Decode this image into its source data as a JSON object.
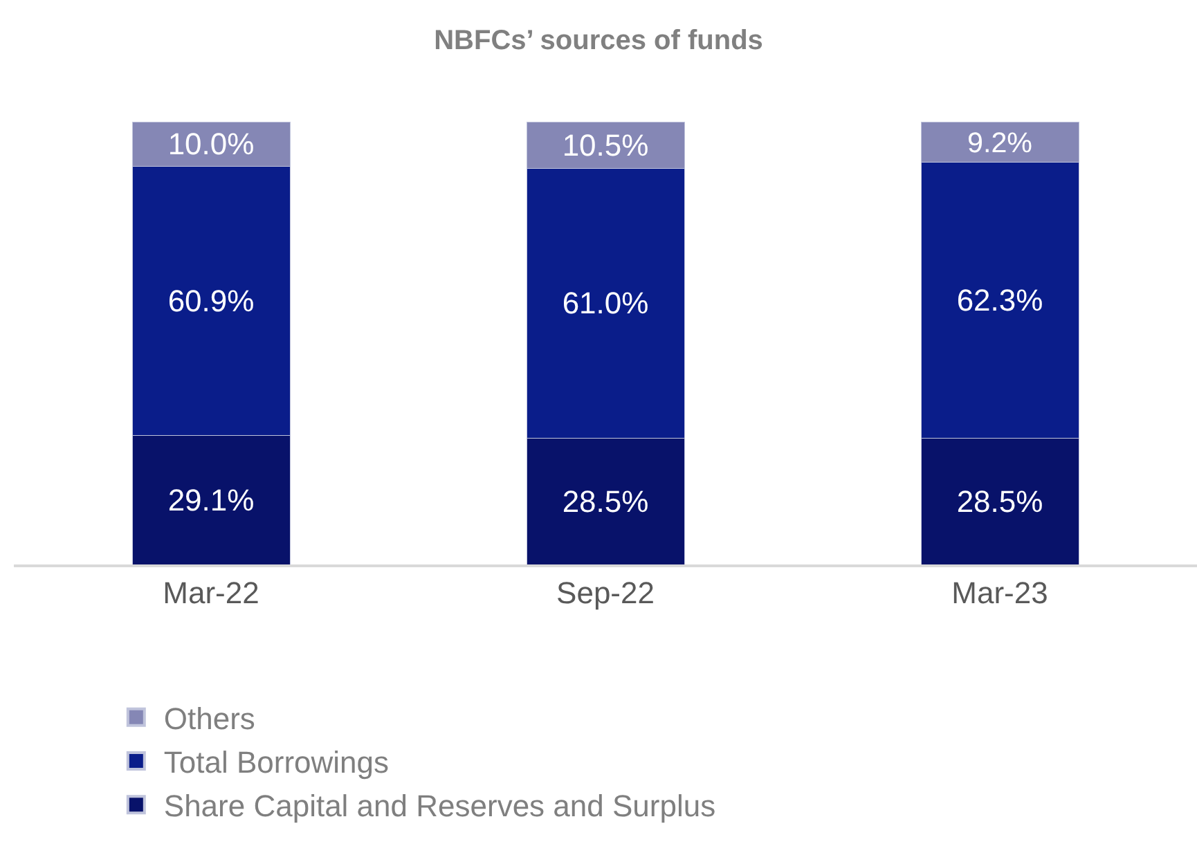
{
  "chart_data": {
    "type": "bar",
    "title": "NBFCs’ sources of funds",
    "categories": [
      "Mar-22",
      "Sep-22",
      "Mar-23"
    ],
    "stacked": true,
    "legend": "bottom",
    "series": [
      {
        "name": "Share Capital and Reserves and Surplus",
        "color": "#08126a",
        "values": [
          29.1,
          28.5,
          28.5
        ],
        "value_labels": [
          "29.1%",
          "28.5%",
          "28.5%"
        ]
      },
      {
        "name": "Total Borrowings",
        "color": "#0a1d8a",
        "values": [
          60.9,
          61.0,
          62.3
        ],
        "value_labels": [
          "60.9%",
          "61.0%",
          "62.3%"
        ]
      },
      {
        "name": "Others",
        "color": "#8587b5",
        "values": [
          10.0,
          10.5,
          9.2
        ],
        "value_labels": [
          "10.0%",
          "10.5%",
          "9.2%"
        ]
      }
    ]
  }
}
